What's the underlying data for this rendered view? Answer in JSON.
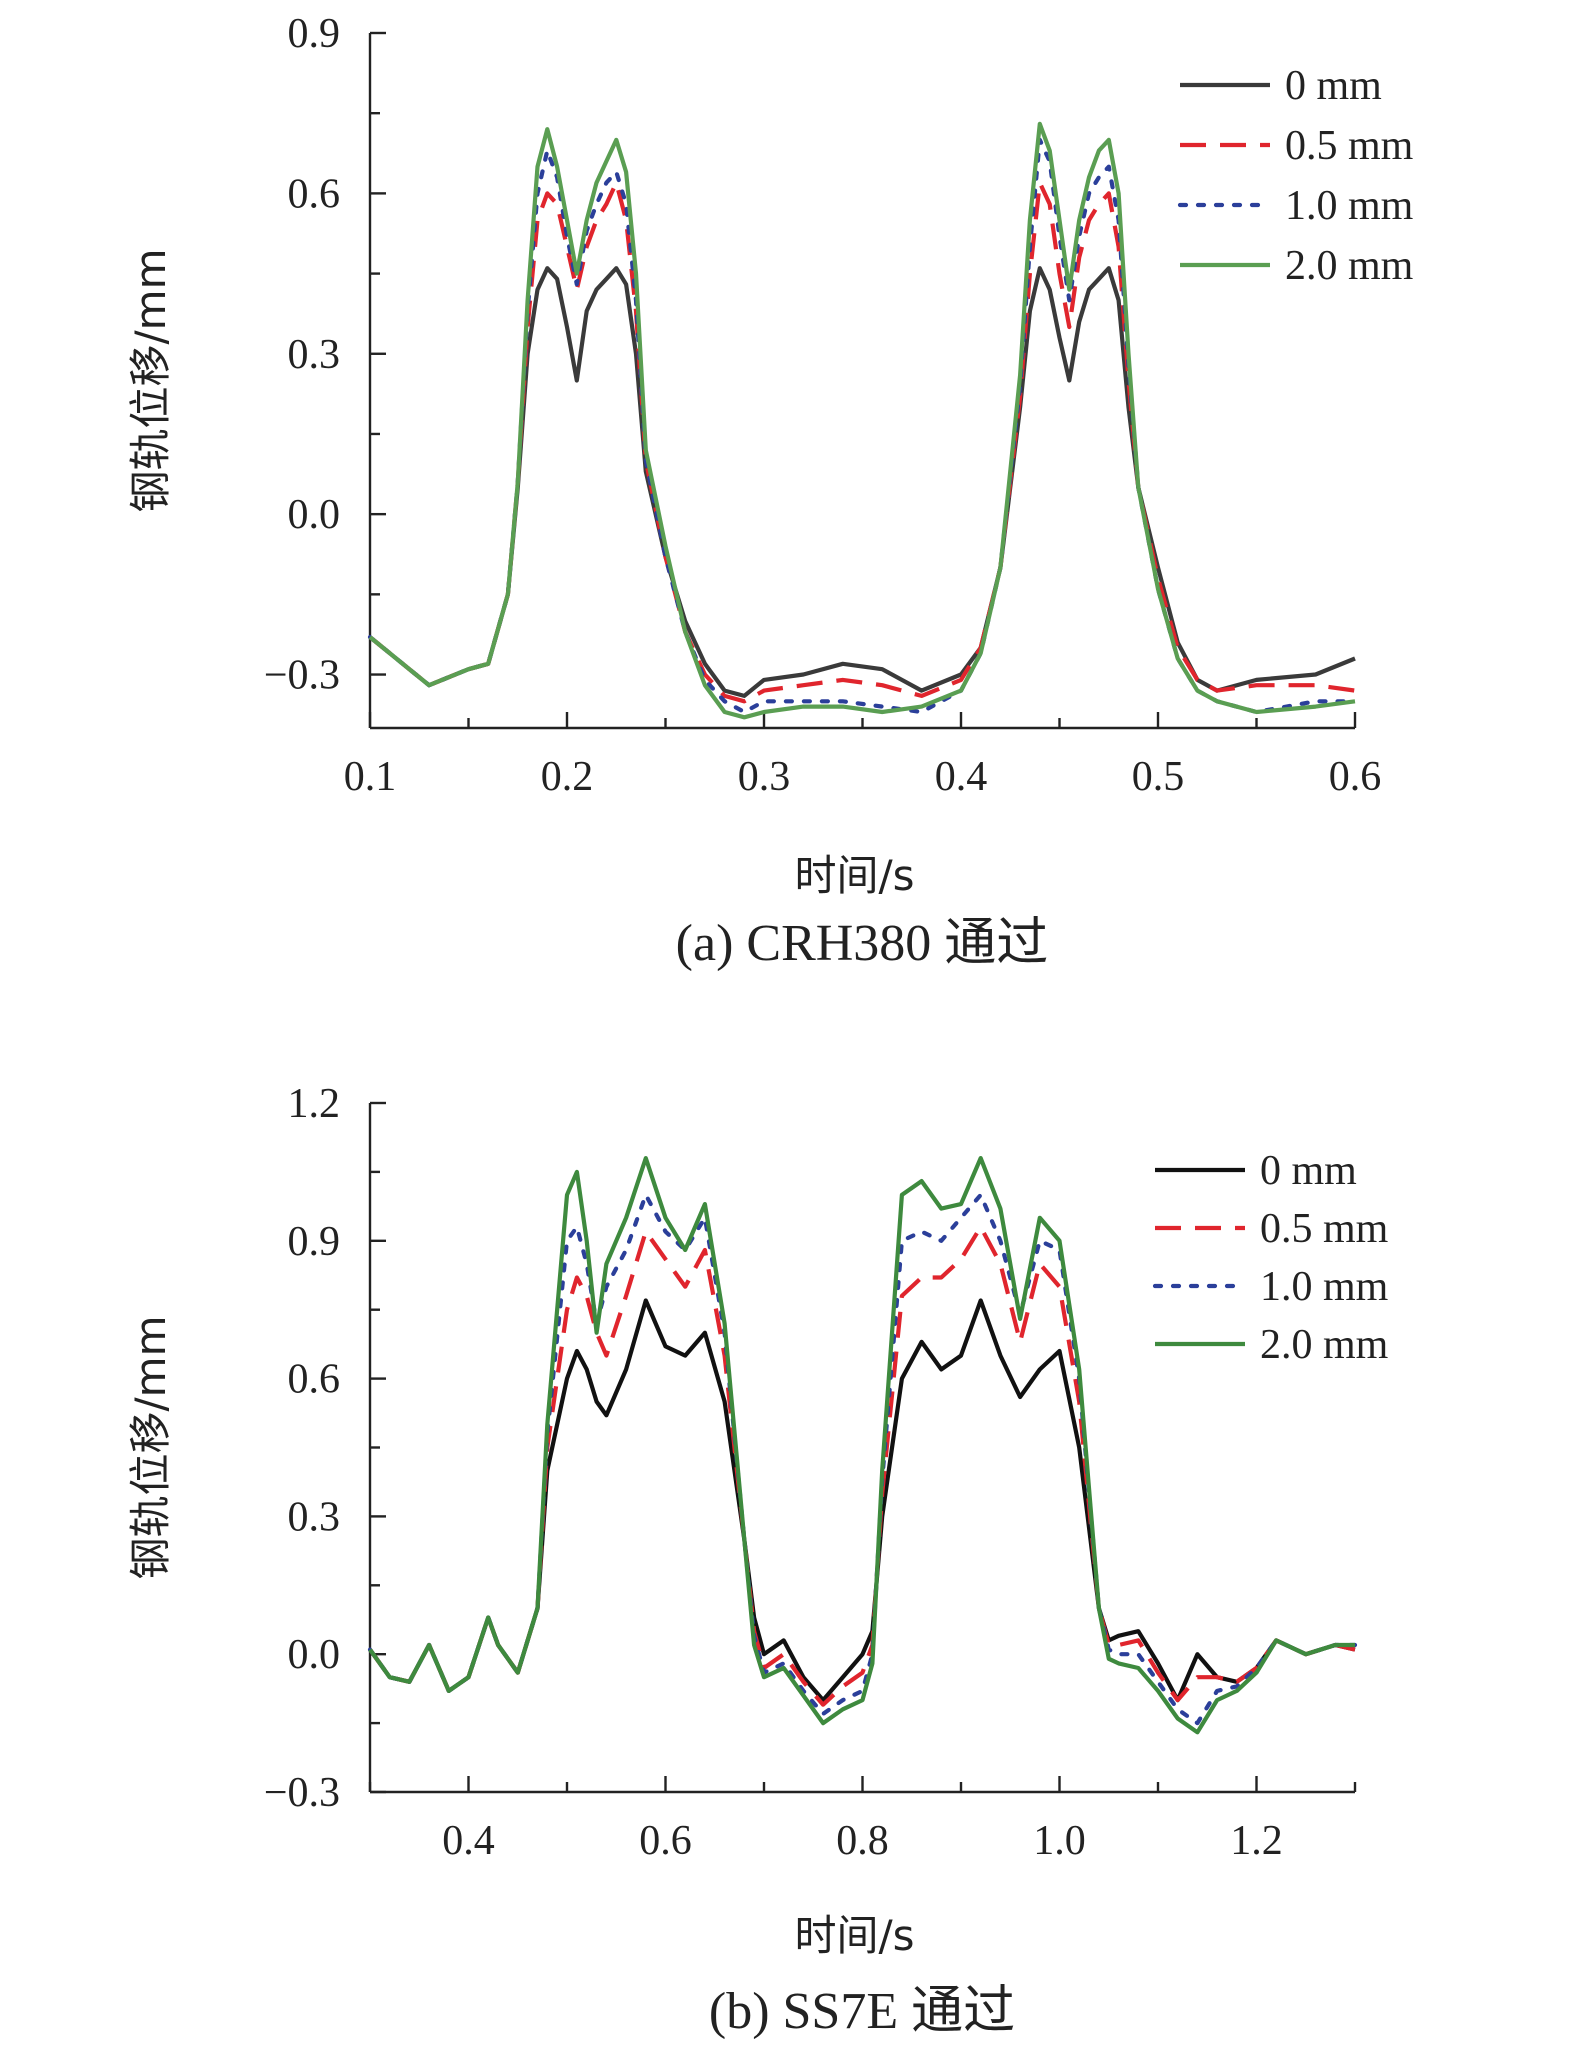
{
  "chart_data": [
    {
      "id": "a",
      "type": "line",
      "caption": "(a) CRH380 通过",
      "xlabel": "时间/s",
      "ylabel": "钢轨位移/mm",
      "xlim": [
        0.1,
        0.6
      ],
      "ylim": [
        -0.4,
        0.9
      ],
      "xticks": [
        0.1,
        0.2,
        0.3,
        0.4,
        0.5,
        0.6
      ],
      "xtick_labels": [
        "0.1",
        "0.2",
        "0.3",
        "0.4",
        "0.5",
        "0.6"
      ],
      "yticks": [
        -0.3,
        0.0,
        0.3,
        0.6,
        0.9
      ],
      "ytick_labels": [
        "−0.3",
        "0.0",
        "0.3",
        "0.6",
        "0.9"
      ],
      "legend_position": "top-right",
      "series": [
        {
          "name": "0 mm",
          "color": "#3a3a3a",
          "dash": "solid",
          "x": [
            0.1,
            0.12,
            0.13,
            0.15,
            0.16,
            0.17,
            0.175,
            0.18,
            0.185,
            0.19,
            0.195,
            0.2,
            0.205,
            0.21,
            0.215,
            0.22,
            0.225,
            0.23,
            0.235,
            0.24,
            0.25,
            0.26,
            0.27,
            0.28,
            0.29,
            0.3,
            0.32,
            0.34,
            0.36,
            0.38,
            0.4,
            0.41,
            0.42,
            0.43,
            0.435,
            0.44,
            0.445,
            0.45,
            0.455,
            0.46,
            0.465,
            0.47,
            0.475,
            0.48,
            0.485,
            0.49,
            0.5,
            0.51,
            0.52,
            0.53,
            0.55,
            0.58,
            0.6
          ],
          "y": [
            -0.23,
            -0.29,
            -0.32,
            -0.29,
            -0.28,
            -0.15,
            0.05,
            0.3,
            0.42,
            0.46,
            0.44,
            0.35,
            0.25,
            0.38,
            0.42,
            0.44,
            0.46,
            0.43,
            0.3,
            0.08,
            -0.08,
            -0.2,
            -0.28,
            -0.33,
            -0.34,
            -0.31,
            -0.3,
            -0.28,
            -0.29,
            -0.33,
            -0.3,
            -0.25,
            -0.1,
            0.2,
            0.38,
            0.46,
            0.42,
            0.33,
            0.25,
            0.36,
            0.42,
            0.44,
            0.46,
            0.4,
            0.2,
            0.05,
            -0.1,
            -0.24,
            -0.31,
            -0.33,
            -0.31,
            -0.3,
            -0.27
          ]
        },
        {
          "name": "0.5 mm",
          "color": "#e0252d",
          "dash": "dashed",
          "x": [
            0.1,
            0.12,
            0.13,
            0.15,
            0.16,
            0.17,
            0.175,
            0.18,
            0.185,
            0.19,
            0.195,
            0.2,
            0.205,
            0.21,
            0.215,
            0.22,
            0.225,
            0.23,
            0.235,
            0.24,
            0.25,
            0.26,
            0.27,
            0.28,
            0.29,
            0.3,
            0.32,
            0.34,
            0.36,
            0.38,
            0.4,
            0.41,
            0.42,
            0.43,
            0.435,
            0.44,
            0.445,
            0.45,
            0.455,
            0.46,
            0.465,
            0.47,
            0.475,
            0.48,
            0.485,
            0.49,
            0.5,
            0.51,
            0.52,
            0.53,
            0.55,
            0.58,
            0.6
          ],
          "y": [
            -0.23,
            -0.29,
            -0.32,
            -0.29,
            -0.28,
            -0.15,
            0.06,
            0.35,
            0.55,
            0.6,
            0.58,
            0.5,
            0.42,
            0.5,
            0.55,
            0.58,
            0.62,
            0.55,
            0.38,
            0.1,
            -0.08,
            -0.22,
            -0.3,
            -0.34,
            -0.35,
            -0.33,
            -0.32,
            -0.31,
            -0.32,
            -0.34,
            -0.31,
            -0.25,
            -0.1,
            0.22,
            0.45,
            0.62,
            0.58,
            0.45,
            0.35,
            0.48,
            0.55,
            0.58,
            0.6,
            0.5,
            0.25,
            0.05,
            -0.12,
            -0.25,
            -0.31,
            -0.33,
            -0.32,
            -0.32,
            -0.33
          ]
        },
        {
          "name": "1.0 mm",
          "color": "#2b3f9a",
          "dash": "dotted",
          "x": [
            0.1,
            0.12,
            0.13,
            0.15,
            0.16,
            0.17,
            0.175,
            0.18,
            0.185,
            0.19,
            0.195,
            0.2,
            0.205,
            0.21,
            0.215,
            0.22,
            0.225,
            0.23,
            0.235,
            0.24,
            0.25,
            0.26,
            0.27,
            0.28,
            0.29,
            0.3,
            0.32,
            0.34,
            0.36,
            0.38,
            0.4,
            0.41,
            0.42,
            0.43,
            0.435,
            0.44,
            0.445,
            0.45,
            0.455,
            0.46,
            0.465,
            0.47,
            0.475,
            0.48,
            0.485,
            0.49,
            0.5,
            0.51,
            0.52,
            0.53,
            0.55,
            0.58,
            0.6
          ],
          "y": [
            -0.23,
            -0.29,
            -0.32,
            -0.29,
            -0.28,
            -0.15,
            0.06,
            0.38,
            0.6,
            0.68,
            0.63,
            0.52,
            0.43,
            0.53,
            0.58,
            0.62,
            0.64,
            0.58,
            0.4,
            0.1,
            -0.08,
            -0.22,
            -0.31,
            -0.35,
            -0.37,
            -0.35,
            -0.35,
            -0.35,
            -0.36,
            -0.37,
            -0.33,
            -0.26,
            -0.1,
            0.24,
            0.5,
            0.7,
            0.66,
            0.52,
            0.4,
            0.52,
            0.6,
            0.63,
            0.65,
            0.55,
            0.28,
            0.05,
            -0.14,
            -0.27,
            -0.33,
            -0.35,
            -0.37,
            -0.35,
            -0.35
          ]
        },
        {
          "name": "2.0 mm",
          "color": "#5a9e52",
          "dash": "solid",
          "x": [
            0.1,
            0.12,
            0.13,
            0.15,
            0.16,
            0.17,
            0.175,
            0.18,
            0.185,
            0.19,
            0.195,
            0.2,
            0.205,
            0.21,
            0.215,
            0.22,
            0.225,
            0.23,
            0.235,
            0.24,
            0.25,
            0.26,
            0.27,
            0.28,
            0.29,
            0.3,
            0.32,
            0.34,
            0.36,
            0.38,
            0.4,
            0.41,
            0.42,
            0.43,
            0.435,
            0.44,
            0.445,
            0.45,
            0.455,
            0.46,
            0.465,
            0.47,
            0.475,
            0.48,
            0.485,
            0.49,
            0.5,
            0.51,
            0.52,
            0.53,
            0.55,
            0.58,
            0.6
          ],
          "y": [
            -0.23,
            -0.29,
            -0.32,
            -0.29,
            -0.28,
            -0.15,
            0.06,
            0.4,
            0.65,
            0.72,
            0.65,
            0.55,
            0.45,
            0.55,
            0.62,
            0.66,
            0.7,
            0.64,
            0.45,
            0.12,
            -0.06,
            -0.22,
            -0.32,
            -0.37,
            -0.38,
            -0.37,
            -0.36,
            -0.36,
            -0.37,
            -0.36,
            -0.33,
            -0.26,
            -0.1,
            0.26,
            0.55,
            0.73,
            0.68,
            0.55,
            0.42,
            0.55,
            0.63,
            0.68,
            0.7,
            0.6,
            0.3,
            0.05,
            -0.14,
            -0.27,
            -0.33,
            -0.35,
            -0.37,
            -0.36,
            -0.35
          ]
        }
      ]
    },
    {
      "id": "b",
      "type": "line",
      "caption": "(b) SS7E 通过",
      "xlabel": "时间/s",
      "ylabel": "钢轨位移/mm",
      "xlim": [
        0.3,
        1.3
      ],
      "ylim": [
        -0.3,
        1.2
      ],
      "xticks": [
        0.4,
        0.6,
        0.8,
        1.0,
        1.2
      ],
      "xtick_labels": [
        "0.4",
        "0.6",
        "0.8",
        "1.0",
        "1.2"
      ],
      "yticks": [
        -0.3,
        0.0,
        0.3,
        0.6,
        0.9,
        1.2
      ],
      "ytick_labels": [
        "−0.3",
        "0.0",
        "0.3",
        "0.6",
        "0.9",
        "1.2"
      ],
      "legend_position": "top-right",
      "series": [
        {
          "name": "0 mm",
          "color": "#111111",
          "dash": "solid",
          "x": [
            0.3,
            0.32,
            0.34,
            0.36,
            0.38,
            0.4,
            0.42,
            0.43,
            0.45,
            0.47,
            0.48,
            0.5,
            0.51,
            0.52,
            0.53,
            0.54,
            0.56,
            0.58,
            0.6,
            0.62,
            0.64,
            0.66,
            0.68,
            0.69,
            0.7,
            0.72,
            0.74,
            0.76,
            0.78,
            0.8,
            0.81,
            0.82,
            0.84,
            0.86,
            0.88,
            0.9,
            0.92,
            0.94,
            0.96,
            0.98,
            1.0,
            1.02,
            1.04,
            1.05,
            1.06,
            1.08,
            1.1,
            1.12,
            1.14,
            1.16,
            1.18,
            1.2,
            1.22,
            1.25,
            1.28,
            1.3
          ],
          "y": [
            0.01,
            -0.05,
            -0.06,
            0.02,
            -0.08,
            -0.05,
            0.08,
            0.02,
            -0.04,
            0.1,
            0.4,
            0.6,
            0.66,
            0.62,
            0.55,
            0.52,
            0.62,
            0.77,
            0.67,
            0.65,
            0.7,
            0.55,
            0.25,
            0.08,
            0.0,
            0.03,
            -0.05,
            -0.1,
            -0.05,
            0.0,
            0.05,
            0.3,
            0.6,
            0.68,
            0.62,
            0.65,
            0.77,
            0.65,
            0.56,
            0.62,
            0.66,
            0.45,
            0.1,
            0.03,
            0.04,
            0.05,
            -0.02,
            -0.1,
            0.0,
            -0.05,
            -0.06,
            -0.03,
            0.03,
            0.0,
            0.02,
            0.01
          ]
        },
        {
          "name": "0.5 mm",
          "color": "#e0252d",
          "dash": "dashed",
          "x": [
            0.3,
            0.32,
            0.34,
            0.36,
            0.38,
            0.4,
            0.42,
            0.43,
            0.45,
            0.47,
            0.48,
            0.5,
            0.51,
            0.52,
            0.53,
            0.54,
            0.56,
            0.58,
            0.6,
            0.62,
            0.64,
            0.66,
            0.68,
            0.69,
            0.7,
            0.72,
            0.74,
            0.76,
            0.78,
            0.8,
            0.81,
            0.82,
            0.84,
            0.86,
            0.88,
            0.9,
            0.92,
            0.94,
            0.96,
            0.98,
            1.0,
            1.02,
            1.04,
            1.05,
            1.06,
            1.08,
            1.1,
            1.12,
            1.14,
            1.16,
            1.18,
            1.2,
            1.22,
            1.25,
            1.28,
            1.3
          ],
          "y": [
            0.01,
            -0.05,
            -0.06,
            0.02,
            -0.08,
            -0.05,
            0.08,
            0.02,
            -0.04,
            0.1,
            0.45,
            0.75,
            0.82,
            0.78,
            0.7,
            0.65,
            0.78,
            0.92,
            0.86,
            0.8,
            0.88,
            0.65,
            0.25,
            0.05,
            -0.03,
            0.0,
            -0.06,
            -0.11,
            -0.07,
            -0.04,
            0.02,
            0.35,
            0.78,
            0.82,
            0.82,
            0.86,
            0.93,
            0.85,
            0.68,
            0.85,
            0.8,
            0.55,
            0.1,
            0.02,
            0.02,
            0.03,
            -0.04,
            -0.1,
            -0.05,
            -0.05,
            -0.06,
            -0.03,
            0.03,
            0.0,
            0.02,
            0.01
          ]
        },
        {
          "name": "1.0 mm",
          "color": "#2b3f9a",
          "dash": "dotted",
          "x": [
            0.3,
            0.32,
            0.34,
            0.36,
            0.38,
            0.4,
            0.42,
            0.43,
            0.45,
            0.47,
            0.48,
            0.5,
            0.51,
            0.52,
            0.53,
            0.54,
            0.56,
            0.58,
            0.6,
            0.62,
            0.64,
            0.66,
            0.68,
            0.69,
            0.7,
            0.72,
            0.74,
            0.76,
            0.78,
            0.8,
            0.81,
            0.82,
            0.84,
            0.86,
            0.88,
            0.9,
            0.92,
            0.94,
            0.96,
            0.98,
            1.0,
            1.02,
            1.04,
            1.05,
            1.06,
            1.08,
            1.1,
            1.12,
            1.14,
            1.16,
            1.18,
            1.2,
            1.22,
            1.25,
            1.28,
            1.3
          ],
          "y": [
            0.01,
            -0.05,
            -0.06,
            0.02,
            -0.08,
            -0.05,
            0.08,
            0.02,
            -0.04,
            0.1,
            0.48,
            0.9,
            0.93,
            0.85,
            0.72,
            0.8,
            0.88,
            1.0,
            0.92,
            0.88,
            0.95,
            0.7,
            0.25,
            0.04,
            -0.04,
            -0.02,
            -0.08,
            -0.13,
            -0.1,
            -0.08,
            0.0,
            0.38,
            0.9,
            0.92,
            0.9,
            0.95,
            1.0,
            0.9,
            0.74,
            0.9,
            0.88,
            0.6,
            0.1,
            0.01,
            0.0,
            0.0,
            -0.06,
            -0.12,
            -0.15,
            -0.08,
            -0.07,
            -0.03,
            0.03,
            0.0,
            0.02,
            0.02
          ]
        },
        {
          "name": "2.0 mm",
          "color": "#3e8a3e",
          "dash": "solid",
          "x": [
            0.3,
            0.32,
            0.34,
            0.36,
            0.38,
            0.4,
            0.42,
            0.43,
            0.45,
            0.47,
            0.48,
            0.5,
            0.51,
            0.52,
            0.53,
            0.54,
            0.56,
            0.58,
            0.6,
            0.62,
            0.64,
            0.66,
            0.68,
            0.69,
            0.7,
            0.72,
            0.74,
            0.76,
            0.78,
            0.8,
            0.81,
            0.82,
            0.84,
            0.86,
            0.88,
            0.9,
            0.92,
            0.94,
            0.96,
            0.98,
            1.0,
            1.02,
            1.04,
            1.05,
            1.06,
            1.08,
            1.1,
            1.12,
            1.14,
            1.16,
            1.18,
            1.2,
            1.22,
            1.25,
            1.28,
            1.3
          ],
          "y": [
            0.01,
            -0.05,
            -0.06,
            0.02,
            -0.08,
            -0.05,
            0.08,
            0.02,
            -0.04,
            0.1,
            0.5,
            1.0,
            1.05,
            0.9,
            0.7,
            0.85,
            0.95,
            1.08,
            0.95,
            0.88,
            0.98,
            0.72,
            0.25,
            0.02,
            -0.05,
            -0.03,
            -0.09,
            -0.15,
            -0.12,
            -0.1,
            -0.02,
            0.4,
            1.0,
            1.03,
            0.97,
            0.98,
            1.08,
            0.97,
            0.73,
            0.95,
            0.9,
            0.62,
            0.1,
            -0.01,
            -0.02,
            -0.03,
            -0.08,
            -0.14,
            -0.17,
            -0.1,
            -0.08,
            -0.04,
            0.03,
            0.0,
            0.02,
            0.02
          ]
        }
      ]
    }
  ]
}
